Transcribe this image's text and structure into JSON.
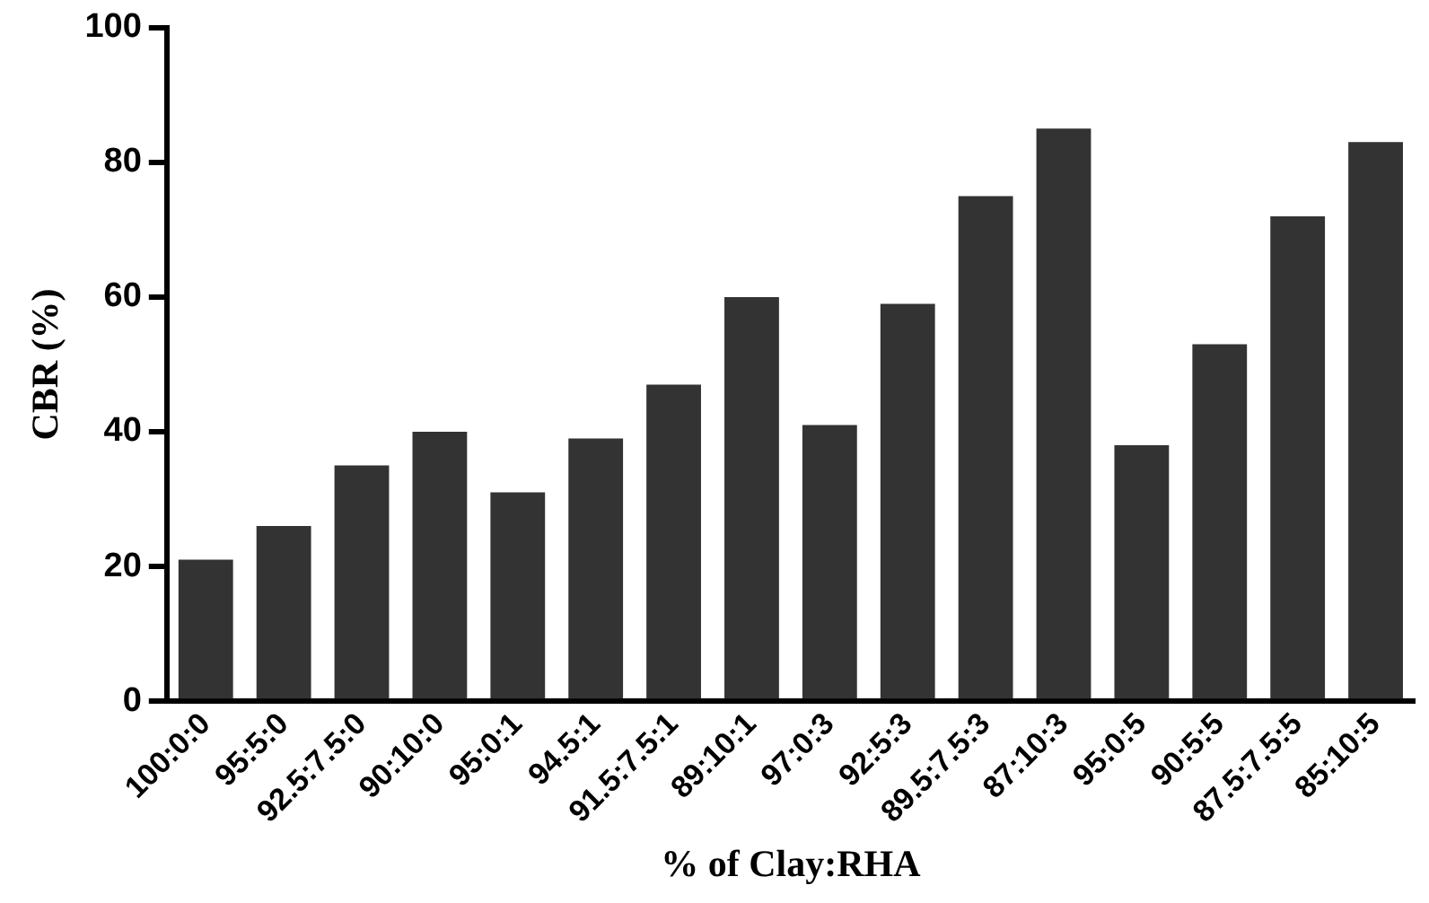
{
  "chart_data": {
    "type": "bar",
    "xlabel": "% of Clay:RHA",
    "ylabel": "CBR (%)",
    "categories": [
      "100:0:0",
      "95:5:0",
      "92.5:7.5:0",
      "90:10:0",
      "95:0:1",
      "94.5:1",
      "91.5:7.5:1",
      "89:10:1",
      "97:0:3",
      "92:5:3",
      "89.5:7.5:3",
      "87:10:3",
      "95:0:5",
      "90:5:5",
      "87.5:7.5:5",
      "85:10:5"
    ],
    "values": [
      21,
      26,
      35,
      40,
      31,
      39,
      47,
      60,
      41,
      59,
      75,
      85,
      38,
      53,
      72,
      83
    ],
    "color": "#333333",
    "ylim": [
      0,
      100
    ],
    "yticks": [
      0,
      20,
      40,
      60,
      80,
      100
    ],
    "grid": false
  }
}
